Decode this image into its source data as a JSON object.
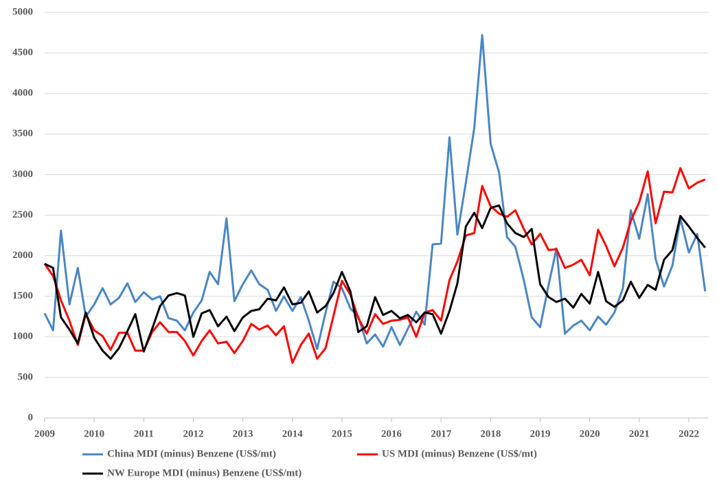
{
  "chart_data": {
    "type": "line",
    "x": [
      2009,
      2009.17,
      2009.33,
      2009.5,
      2009.67,
      2009.83,
      2010,
      2010.17,
      2010.33,
      2010.5,
      2010.67,
      2010.83,
      2011,
      2011.17,
      2011.33,
      2011.5,
      2011.67,
      2011.83,
      2012,
      2012.17,
      2012.33,
      2012.5,
      2012.67,
      2012.83,
      2013,
      2013.17,
      2013.33,
      2013.5,
      2013.67,
      2013.83,
      2014,
      2014.17,
      2014.33,
      2014.5,
      2014.67,
      2014.83,
      2015,
      2015.17,
      2015.33,
      2015.5,
      2015.67,
      2015.83,
      2016,
      2016.17,
      2016.33,
      2016.5,
      2016.67,
      2016.83,
      2017,
      2017.17,
      2017.33,
      2017.5,
      2017.67,
      2017.83,
      2018,
      2018.17,
      2018.33,
      2018.5,
      2018.67,
      2018.83,
      2019,
      2019.17,
      2019.33,
      2019.5,
      2019.67,
      2019.83,
      2020,
      2020.17,
      2020.33,
      2020.5,
      2020.67,
      2020.83,
      2021,
      2021.17,
      2021.33,
      2021.5,
      2021.67,
      2021.83,
      2022,
      2022.17,
      2022.33
    ],
    "series": [
      {
        "name": "China MDI (minus) Benzene (US$/mt)",
        "color": "#4a86c2",
        "values": [
          1290,
          1080,
          2310,
          1400,
          1850,
          1250,
          1400,
          1600,
          1400,
          1480,
          1660,
          1430,
          1550,
          1460,
          1500,
          1230,
          1200,
          1080,
          1300,
          1450,
          1800,
          1650,
          2460,
          1440,
          1650,
          1820,
          1650,
          1580,
          1320,
          1500,
          1320,
          1490,
          1200,
          850,
          1300,
          1680,
          1600,
          1350,
          1250,
          920,
          1030,
          880,
          1120,
          900,
          1100,
          1310,
          1150,
          2140,
          2150,
          3460,
          2260,
          2900,
          3570,
          4720,
          3380,
          3030,
          2230,
          2110,
          1700,
          1240,
          1120,
          1640,
          2090,
          1040,
          1140,
          1200,
          1080,
          1250,
          1150,
          1300,
          1600,
          2560,
          2210,
          2760,
          1960,
          1620,
          1880,
          2460,
          2040,
          2270,
          1560
        ]
      },
      {
        "name": "US MDI (minus) Benzene (US$/mt)",
        "color": "#ff0000",
        "values": [
          1900,
          1750,
          1450,
          1200,
          900,
          1280,
          1080,
          1010,
          840,
          1050,
          1050,
          830,
          830,
          1060,
          1180,
          1060,
          1060,
          950,
          770,
          950,
          1080,
          920,
          940,
          800,
          950,
          1160,
          1090,
          1140,
          1020,
          1130,
          680,
          900,
          1040,
          730,
          860,
          1260,
          1690,
          1520,
          1230,
          1040,
          1280,
          1160,
          1200,
          1210,
          1240,
          1000,
          1300,
          1330,
          1200,
          1700,
          1930,
          2250,
          2280,
          2860,
          2610,
          2520,
          2480,
          2560,
          2330,
          2140,
          2270,
          2070,
          2080,
          1850,
          1890,
          1950,
          1760,
          2320,
          2120,
          1870,
          2100,
          2430,
          2660,
          3040,
          2400,
          2790,
          2780,
          3080,
          2830,
          2900,
          2940
        ]
      },
      {
        "name": "NW Europe MDI (minus) Benzene (US$/mt)",
        "color": "#000000",
        "values": [
          1900,
          1850,
          1240,
          1090,
          920,
          1300,
          990,
          830,
          730,
          860,
          1070,
          1280,
          820,
          1100,
          1380,
          1510,
          1540,
          1510,
          1000,
          1290,
          1330,
          1130,
          1250,
          1070,
          1240,
          1320,
          1340,
          1470,
          1450,
          1610,
          1400,
          1420,
          1560,
          1300,
          1380,
          1540,
          1800,
          1560,
          1060,
          1130,
          1490,
          1270,
          1320,
          1230,
          1270,
          1180,
          1300,
          1280,
          1040,
          1320,
          1660,
          2360,
          2530,
          2340,
          2590,
          2620,
          2400,
          2280,
          2230,
          2330,
          1650,
          1490,
          1430,
          1470,
          1360,
          1530,
          1410,
          1800,
          1440,
          1370,
          1450,
          1680,
          1480,
          1640,
          1580,
          1950,
          2070,
          2490,
          2360,
          2220,
          2100
        ]
      }
    ],
    "xlim": [
      2009,
      2022.4
    ],
    "xticks": [
      2009,
      2010,
      2011,
      2012,
      2013,
      2014,
      2015,
      2016,
      2017,
      2018,
      2019,
      2020,
      2021,
      2022
    ],
    "ylim": [
      0,
      5000
    ],
    "yticks": [
      0,
      500,
      1000,
      1500,
      2000,
      2500,
      3000,
      3500,
      4000,
      4500,
      5000
    ],
    "grid": true,
    "legend": "bottom"
  }
}
